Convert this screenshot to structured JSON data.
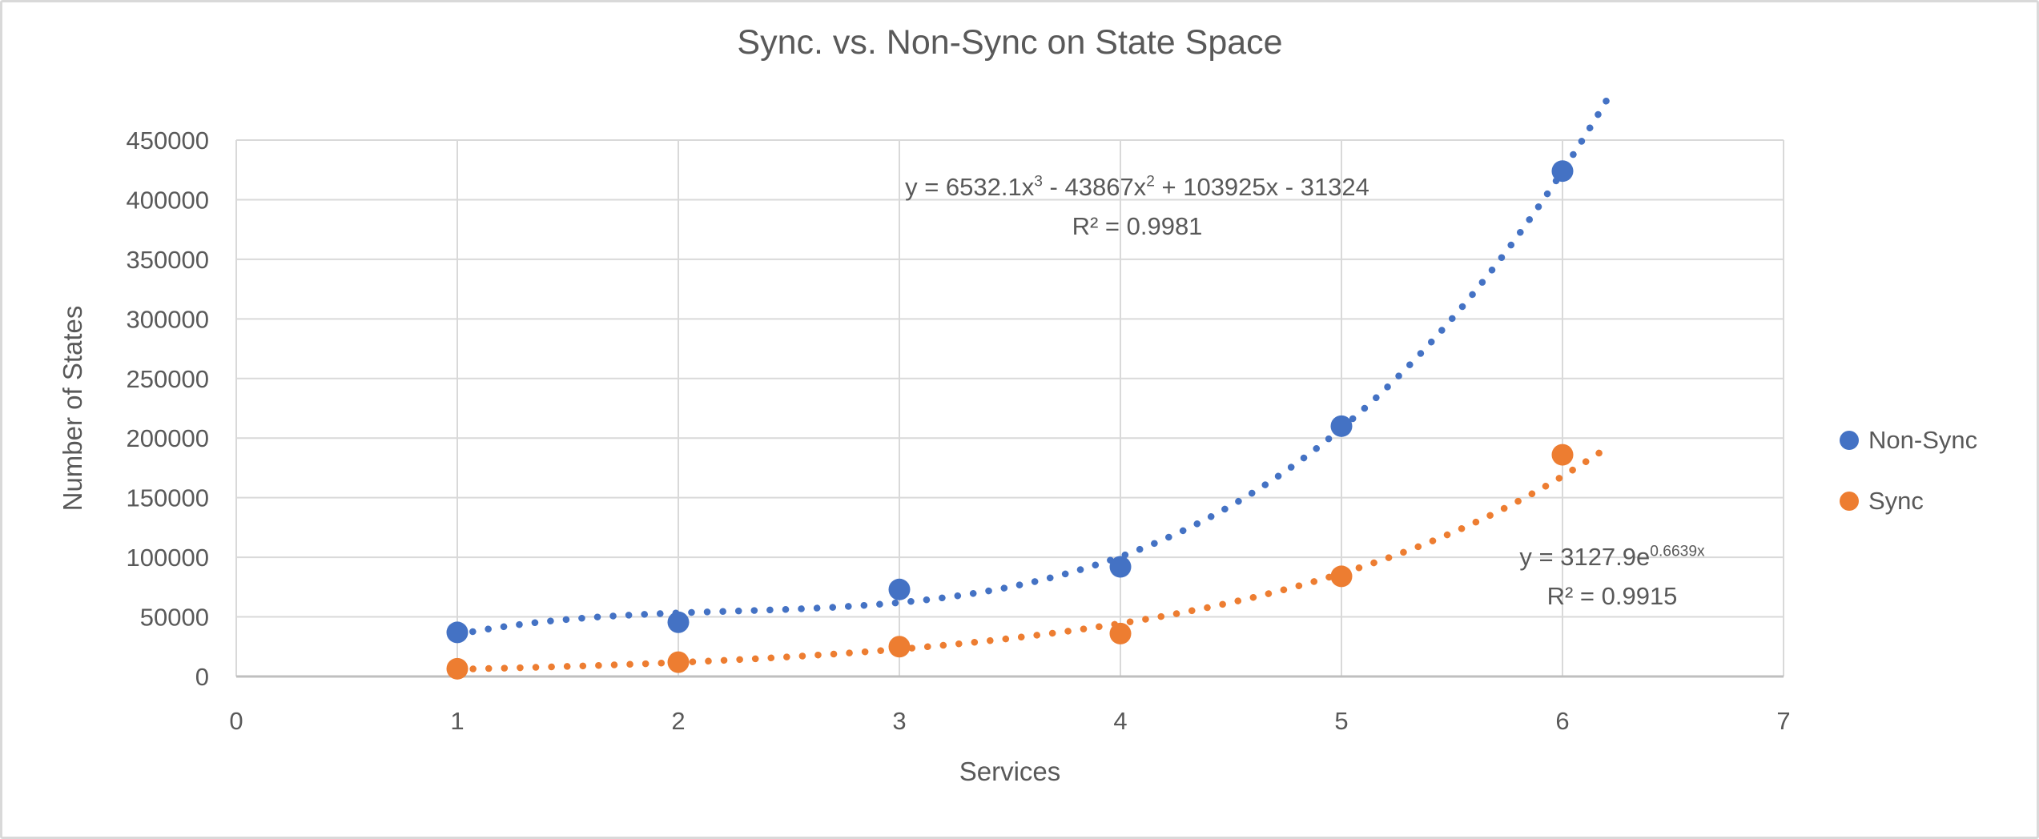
{
  "chart_data": {
    "type": "scatter",
    "title": "Sync. vs. Non-Sync on State Space",
    "xlabel": "Services",
    "ylabel": "Number of States",
    "xlim": [
      0,
      7
    ],
    "ylim": [
      0,
      450000
    ],
    "x_ticks": [
      0,
      1,
      2,
      3,
      4,
      5,
      6,
      7
    ],
    "y_ticks": [
      0,
      50000,
      100000,
      150000,
      200000,
      250000,
      300000,
      350000,
      400000,
      450000
    ],
    "grid": true,
    "legend_position": "right",
    "series": [
      {
        "name": "Non-Sync",
        "color": "#4472C4",
        "x": [
          1,
          2,
          3,
          4,
          5,
          6
        ],
        "y": [
          37000,
          45500,
          73000,
          92000,
          210000,
          424000
        ],
        "trendline": {
          "kind": "polynomial",
          "degree": 3,
          "coefficients": [
            6532.1,
            -43867,
            103925,
            -31324
          ],
          "r2": 0.9981,
          "style": "dotted",
          "range": [
            1,
            6.2
          ]
        }
      },
      {
        "name": "Sync",
        "color": "#ED7D31",
        "x": [
          1,
          2,
          3,
          4,
          5,
          6
        ],
        "y": [
          6500,
          12000,
          25000,
          36000,
          84000,
          186000
        ],
        "trendline": {
          "kind": "exponential",
          "a": 3127.9,
          "b": 0.6639,
          "r2": 0.9915,
          "style": "dotted",
          "range": [
            1,
            6.2
          ]
        }
      }
    ]
  },
  "annotations": {
    "nonsync_eq": {
      "p1": "y = 6532.1x",
      "sup1": "3",
      "p2": " - 43867x",
      "sup2": "2",
      "p3": " + 103925x - 31324",
      "r2": "R² = 0.9981"
    },
    "sync_eq": {
      "p1": "y = 3127.9e",
      "sup1": "0.6639x",
      "r2": "R² = 0.9915"
    }
  },
  "legend": {
    "items": [
      {
        "label": "Non-Sync",
        "color": "#4472C4"
      },
      {
        "label": "Sync",
        "color": "#ED7D31"
      }
    ]
  },
  "style_colors": {
    "text": "#595959",
    "gridline": "#D9D9D9",
    "axis_line": "#BFBFBF"
  }
}
